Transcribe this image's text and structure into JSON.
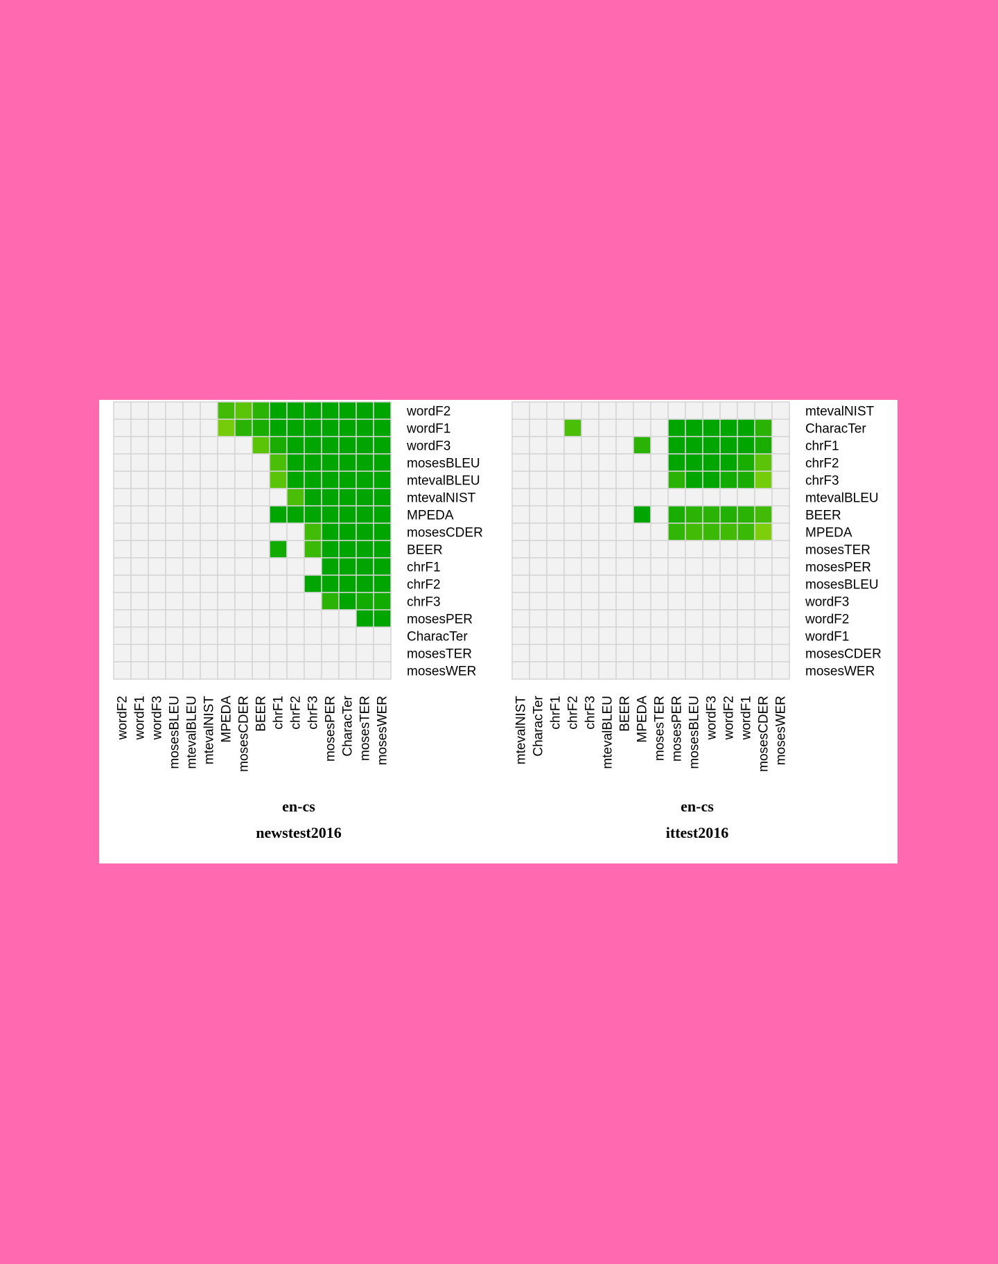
{
  "chart_data": [
    {
      "type": "heatmap",
      "subtitle": "en-cs",
      "title": "newstest2016",
      "x_labels": [
        "wordF2",
        "wordF1",
        "wordF3",
        "mosesBLEU",
        "mtevalBLEU",
        "mtevalNIST",
        "MPEDA",
        "mosesCDER",
        "BEER",
        "chrF1",
        "chrF2",
        "chrF3",
        "mosesPER",
        "CharacTer",
        "mosesTER",
        "mosesWER"
      ],
      "y_labels": [
        "wordF2",
        "wordF1",
        "wordF3",
        "mosesBLEU",
        "mtevalBLEU",
        "mtevalNIST",
        "MPEDA",
        "mosesCDER",
        "BEER",
        "chrF1",
        "chrF2",
        "chrF3",
        "mosesPER",
        "CharacTer",
        "mosesTER",
        "mosesWER"
      ],
      "values": [
        [
          0,
          0,
          0,
          0,
          0,
          0,
          0.6,
          0.45,
          0.75,
          1,
          1,
          1,
          1,
          1,
          1,
          1
        ],
        [
          0,
          0,
          0,
          0,
          0,
          0,
          0.3,
          0.75,
          0.85,
          1,
          1,
          1,
          1,
          1,
          1,
          1
        ],
        [
          0,
          0,
          0,
          0,
          0,
          0,
          0,
          0,
          0.45,
          0.85,
          1,
          1,
          1,
          1,
          1,
          1
        ],
        [
          0,
          0,
          0,
          0,
          0,
          0,
          0,
          0,
          0,
          0.55,
          1,
          1,
          1,
          1,
          1,
          1
        ],
        [
          0,
          0,
          0,
          0,
          0,
          0,
          0,
          0,
          0,
          0.45,
          1,
          1,
          1,
          1,
          1,
          1
        ],
        [
          0,
          0,
          0,
          0,
          0,
          0,
          0,
          0,
          0,
          0,
          0.55,
          1,
          1,
          1,
          1,
          1
        ],
        [
          0,
          0,
          0,
          0,
          0,
          0,
          0,
          0,
          0,
          1,
          1,
          1,
          1,
          1,
          1,
          1
        ],
        [
          0,
          0,
          0,
          0,
          0,
          0,
          0,
          0,
          0,
          0,
          0,
          0.6,
          1,
          1,
          1,
          1
        ],
        [
          0,
          0,
          0,
          0,
          0,
          0,
          0,
          0,
          0,
          0.9,
          0,
          0.65,
          1,
          1,
          1,
          1
        ],
        [
          0,
          0,
          0,
          0,
          0,
          0,
          0,
          0,
          0,
          0,
          0,
          0,
          1,
          1,
          1,
          1
        ],
        [
          0,
          0,
          0,
          0,
          0,
          0,
          0,
          0,
          0,
          0,
          0,
          1,
          1,
          1,
          1,
          1
        ],
        [
          0,
          0,
          0,
          0,
          0,
          0,
          0,
          0,
          0,
          0,
          0,
          0,
          0.75,
          1,
          0.9,
          0.9
        ],
        [
          0,
          0,
          0,
          0,
          0,
          0,
          0,
          0,
          0,
          0,
          0,
          0,
          0,
          0,
          1,
          1
        ],
        [
          0,
          0,
          0,
          0,
          0,
          0,
          0,
          0,
          0,
          0,
          0,
          0,
          0,
          0,
          0,
          0
        ],
        [
          0,
          0,
          0,
          0,
          0,
          0,
          0,
          0,
          0,
          0,
          0,
          0,
          0,
          0,
          0,
          0
        ],
        [
          0,
          0,
          0,
          0,
          0,
          0,
          0,
          0,
          0,
          0,
          0,
          0,
          0,
          0,
          0,
          0
        ]
      ]
    },
    {
      "type": "heatmap",
      "subtitle": "en-cs",
      "title": "ittest2016",
      "x_labels": [
        "mtevalNIST",
        "CharacTer",
        "chrF1",
        "chrF2",
        "chrF3",
        "mtevalBLEU",
        "BEER",
        "MPEDA",
        "mosesTER",
        "mosesPER",
        "mosesBLEU",
        "wordF3",
        "wordF2",
        "wordF1",
        "mosesCDER",
        "mosesWER"
      ],
      "y_labels": [
        "mtevalNIST",
        "CharacTer",
        "chrF1",
        "chrF2",
        "chrF3",
        "mtevalBLEU",
        "BEER",
        "MPEDA",
        "mosesTER",
        "mosesPER",
        "mosesBLEU",
        "wordF3",
        "wordF2",
        "wordF1",
        "mosesCDER",
        "mosesWER"
      ],
      "values": [
        [
          0,
          0,
          0,
          0,
          0,
          0,
          0,
          0,
          0,
          0,
          0,
          0,
          0,
          0,
          0,
          0
        ],
        [
          0,
          0,
          0,
          0.55,
          0,
          0,
          0,
          0,
          0,
          1,
          1,
          1,
          1,
          1,
          0.75,
          0
        ],
        [
          0,
          0,
          0,
          0,
          0,
          0,
          0,
          0.75,
          0,
          1,
          1,
          1,
          1,
          1,
          0.85,
          0
        ],
        [
          0,
          0,
          0,
          0,
          0,
          0,
          0,
          0,
          0,
          1,
          1,
          1,
          1,
          0.85,
          0.45,
          0
        ],
        [
          0,
          0,
          0,
          0,
          0,
          0,
          0,
          0,
          0,
          0.75,
          1,
          1,
          0.9,
          0.85,
          0.3,
          0
        ],
        [
          0,
          0,
          0,
          0,
          0,
          0,
          0,
          0,
          0,
          0,
          0,
          0,
          0,
          0,
          0,
          0
        ],
        [
          0,
          0,
          0,
          0,
          0,
          0,
          0,
          1,
          0,
          0.85,
          0.75,
          0.75,
          0.8,
          0.75,
          0.6,
          0
        ],
        [
          0,
          0,
          0,
          0,
          0,
          0,
          0,
          0,
          0,
          0.7,
          0.6,
          0.65,
          0.6,
          0.65,
          0.25,
          0
        ],
        [
          0,
          0,
          0,
          0,
          0,
          0,
          0,
          0,
          0,
          0,
          0,
          0,
          0,
          0,
          0,
          0
        ],
        [
          0,
          0,
          0,
          0,
          0,
          0,
          0,
          0,
          0,
          0,
          0,
          0,
          0,
          0,
          0,
          0
        ],
        [
          0,
          0,
          0,
          0,
          0,
          0,
          0,
          0,
          0,
          0,
          0,
          0,
          0,
          0,
          0,
          0
        ],
        [
          0,
          0,
          0,
          0,
          0,
          0,
          0,
          0,
          0,
          0,
          0,
          0,
          0,
          0,
          0,
          0
        ],
        [
          0,
          0,
          0,
          0,
          0,
          0,
          0,
          0,
          0,
          0,
          0,
          0,
          0,
          0,
          0,
          0
        ],
        [
          0,
          0,
          0,
          0,
          0,
          0,
          0,
          0,
          0,
          0,
          0,
          0,
          0,
          0,
          0,
          0
        ],
        [
          0,
          0,
          0,
          0,
          0,
          0,
          0,
          0,
          0,
          0,
          0,
          0,
          0,
          0,
          0,
          0
        ],
        [
          0,
          0,
          0,
          0,
          0,
          0,
          0,
          0,
          0,
          0,
          0,
          0,
          0,
          0,
          0,
          0
        ]
      ]
    }
  ],
  "colors": {
    "page_background": "#ff69b0",
    "figure_background": "#ffffff",
    "empty_cell": "#f2f2f2",
    "grid_line": "#d4d4d4",
    "low_significance": "#a6dd10",
    "high_significance": "#00a500"
  }
}
